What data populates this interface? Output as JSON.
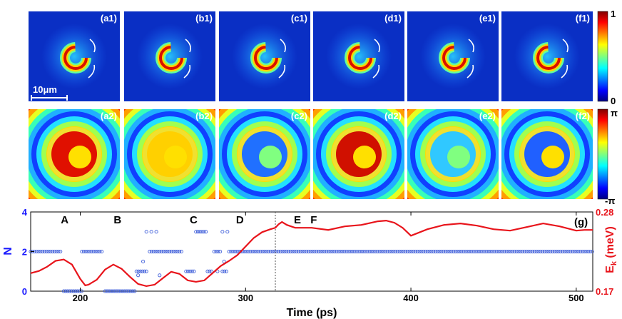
{
  "figure": {
    "row1_labels": [
      "(a1)",
      "(b1)",
      "(c1)",
      "(d1)",
      "(e1)",
      "(f1)"
    ],
    "row2_labels": [
      "(a2)",
      "(b2)",
      "(c2)",
      "(d2)",
      "(e2)",
      "(f2)"
    ],
    "scale_bar": "10μm",
    "colorbar1": {
      "max": "1",
      "min": "0"
    },
    "colorbar2": {
      "max": "π",
      "min": "-π"
    },
    "colors": {
      "plot_line": "#e8141b",
      "scatter": "#3b5bd9",
      "n_axis": "#1a1aff",
      "ek_axis": "#e8141b"
    }
  },
  "chart_data": {
    "type": "line",
    "panel_label": "(g)",
    "xlabel": "Time (ps)",
    "ylabel_left": "N",
    "ylabel_right": "E",
    "ylabel_right_sub": "k",
    "ylabel_right_unit": " (meV)",
    "xlim": [
      170,
      510
    ],
    "xticks": [
      200,
      300,
      400,
      500
    ],
    "ylim_left": [
      0,
      4
    ],
    "yticks_left": [
      0,
      2,
      4
    ],
    "ylim_right": [
      0.17,
      0.28
    ],
    "yticks_right": [
      "0.17",
      "0.28"
    ],
    "annotations": [
      {
        "label": "A",
        "x": 196
      },
      {
        "label": "B",
        "x": 228
      },
      {
        "label": "C",
        "x": 274
      },
      {
        "label": "D",
        "x": 302
      },
      {
        "label": "E",
        "x": 337
      },
      {
        "label": "F",
        "x": 347
      }
    ],
    "vline_x": 318,
    "series": [
      {
        "axis": "right",
        "x": [
          170,
          175,
          180,
          185,
          190,
          195,
          200,
          203,
          205,
          210,
          215,
          220,
          225,
          230,
          235,
          240,
          245,
          250,
          255,
          260,
          265,
          270,
          275,
          280,
          285,
          290,
          295,
          300,
          305,
          310,
          315,
          318,
          320,
          322,
          325,
          330,
          340,
          350,
          360,
          370,
          380,
          385,
          390,
          395,
          400,
          410,
          420,
          430,
          440,
          450,
          460,
          470,
          480,
          490,
          500,
          505,
          510
        ],
        "y": [
          0.195,
          0.198,
          0.204,
          0.212,
          0.214,
          0.207,
          0.187,
          0.178,
          0.179,
          0.186,
          0.2,
          0.207,
          0.201,
          0.19,
          0.18,
          0.177,
          0.179,
          0.188,
          0.197,
          0.194,
          0.185,
          0.183,
          0.185,
          0.195,
          0.205,
          0.212,
          0.22,
          0.232,
          0.244,
          0.252,
          0.256,
          0.258,
          0.263,
          0.266,
          0.262,
          0.258,
          0.258,
          0.255,
          0.26,
          0.262,
          0.267,
          0.268,
          0.265,
          0.258,
          0.247,
          0.256,
          0.262,
          0.264,
          0.261,
          0.256,
          0.254,
          0.259,
          0.264,
          0.26,
          0.254,
          0.255,
          0.255
        ]
      },
      {
        "axis": "left",
        "type": "scatter",
        "segments": [
          {
            "x0": 170,
            "x1": 189,
            "n": 2
          },
          {
            "x0": 190,
            "x1": 201,
            "n": 0
          },
          {
            "x0": 201,
            "x1": 214,
            "n": 2
          },
          {
            "x0": 215,
            "x1": 233,
            "n": 0
          },
          {
            "x0": 234,
            "x1": 241,
            "n": 1
          },
          {
            "x0": 242,
            "x1": 262,
            "n": 2
          },
          {
            "x0": 264,
            "x1": 269,
            "n": 1
          },
          {
            "x0": 270,
            "x1": 276,
            "n": 3
          },
          {
            "x0": 277,
            "x1": 280,
            "n": 1
          },
          {
            "x0": 281,
            "x1": 285,
            "n": 2
          },
          {
            "x0": 286,
            "x1": 289,
            "n": 1
          },
          {
            "x0": 290,
            "x1": 510,
            "n": 2
          }
        ],
        "extra_points": [
          {
            "x": 240,
            "n": 3
          },
          {
            "x": 243,
            "n": 3
          },
          {
            "x": 246,
            "n": 3
          },
          {
            "x": 238,
            "n": 1.5
          },
          {
            "x": 235,
            "n": 0.8
          },
          {
            "x": 248,
            "n": 0.8
          },
          {
            "x": 286,
            "n": 3
          },
          {
            "x": 289,
            "n": 3
          },
          {
            "x": 287,
            "n": 1.5
          },
          {
            "x": 283,
            "n": 1
          }
        ]
      }
    ]
  }
}
